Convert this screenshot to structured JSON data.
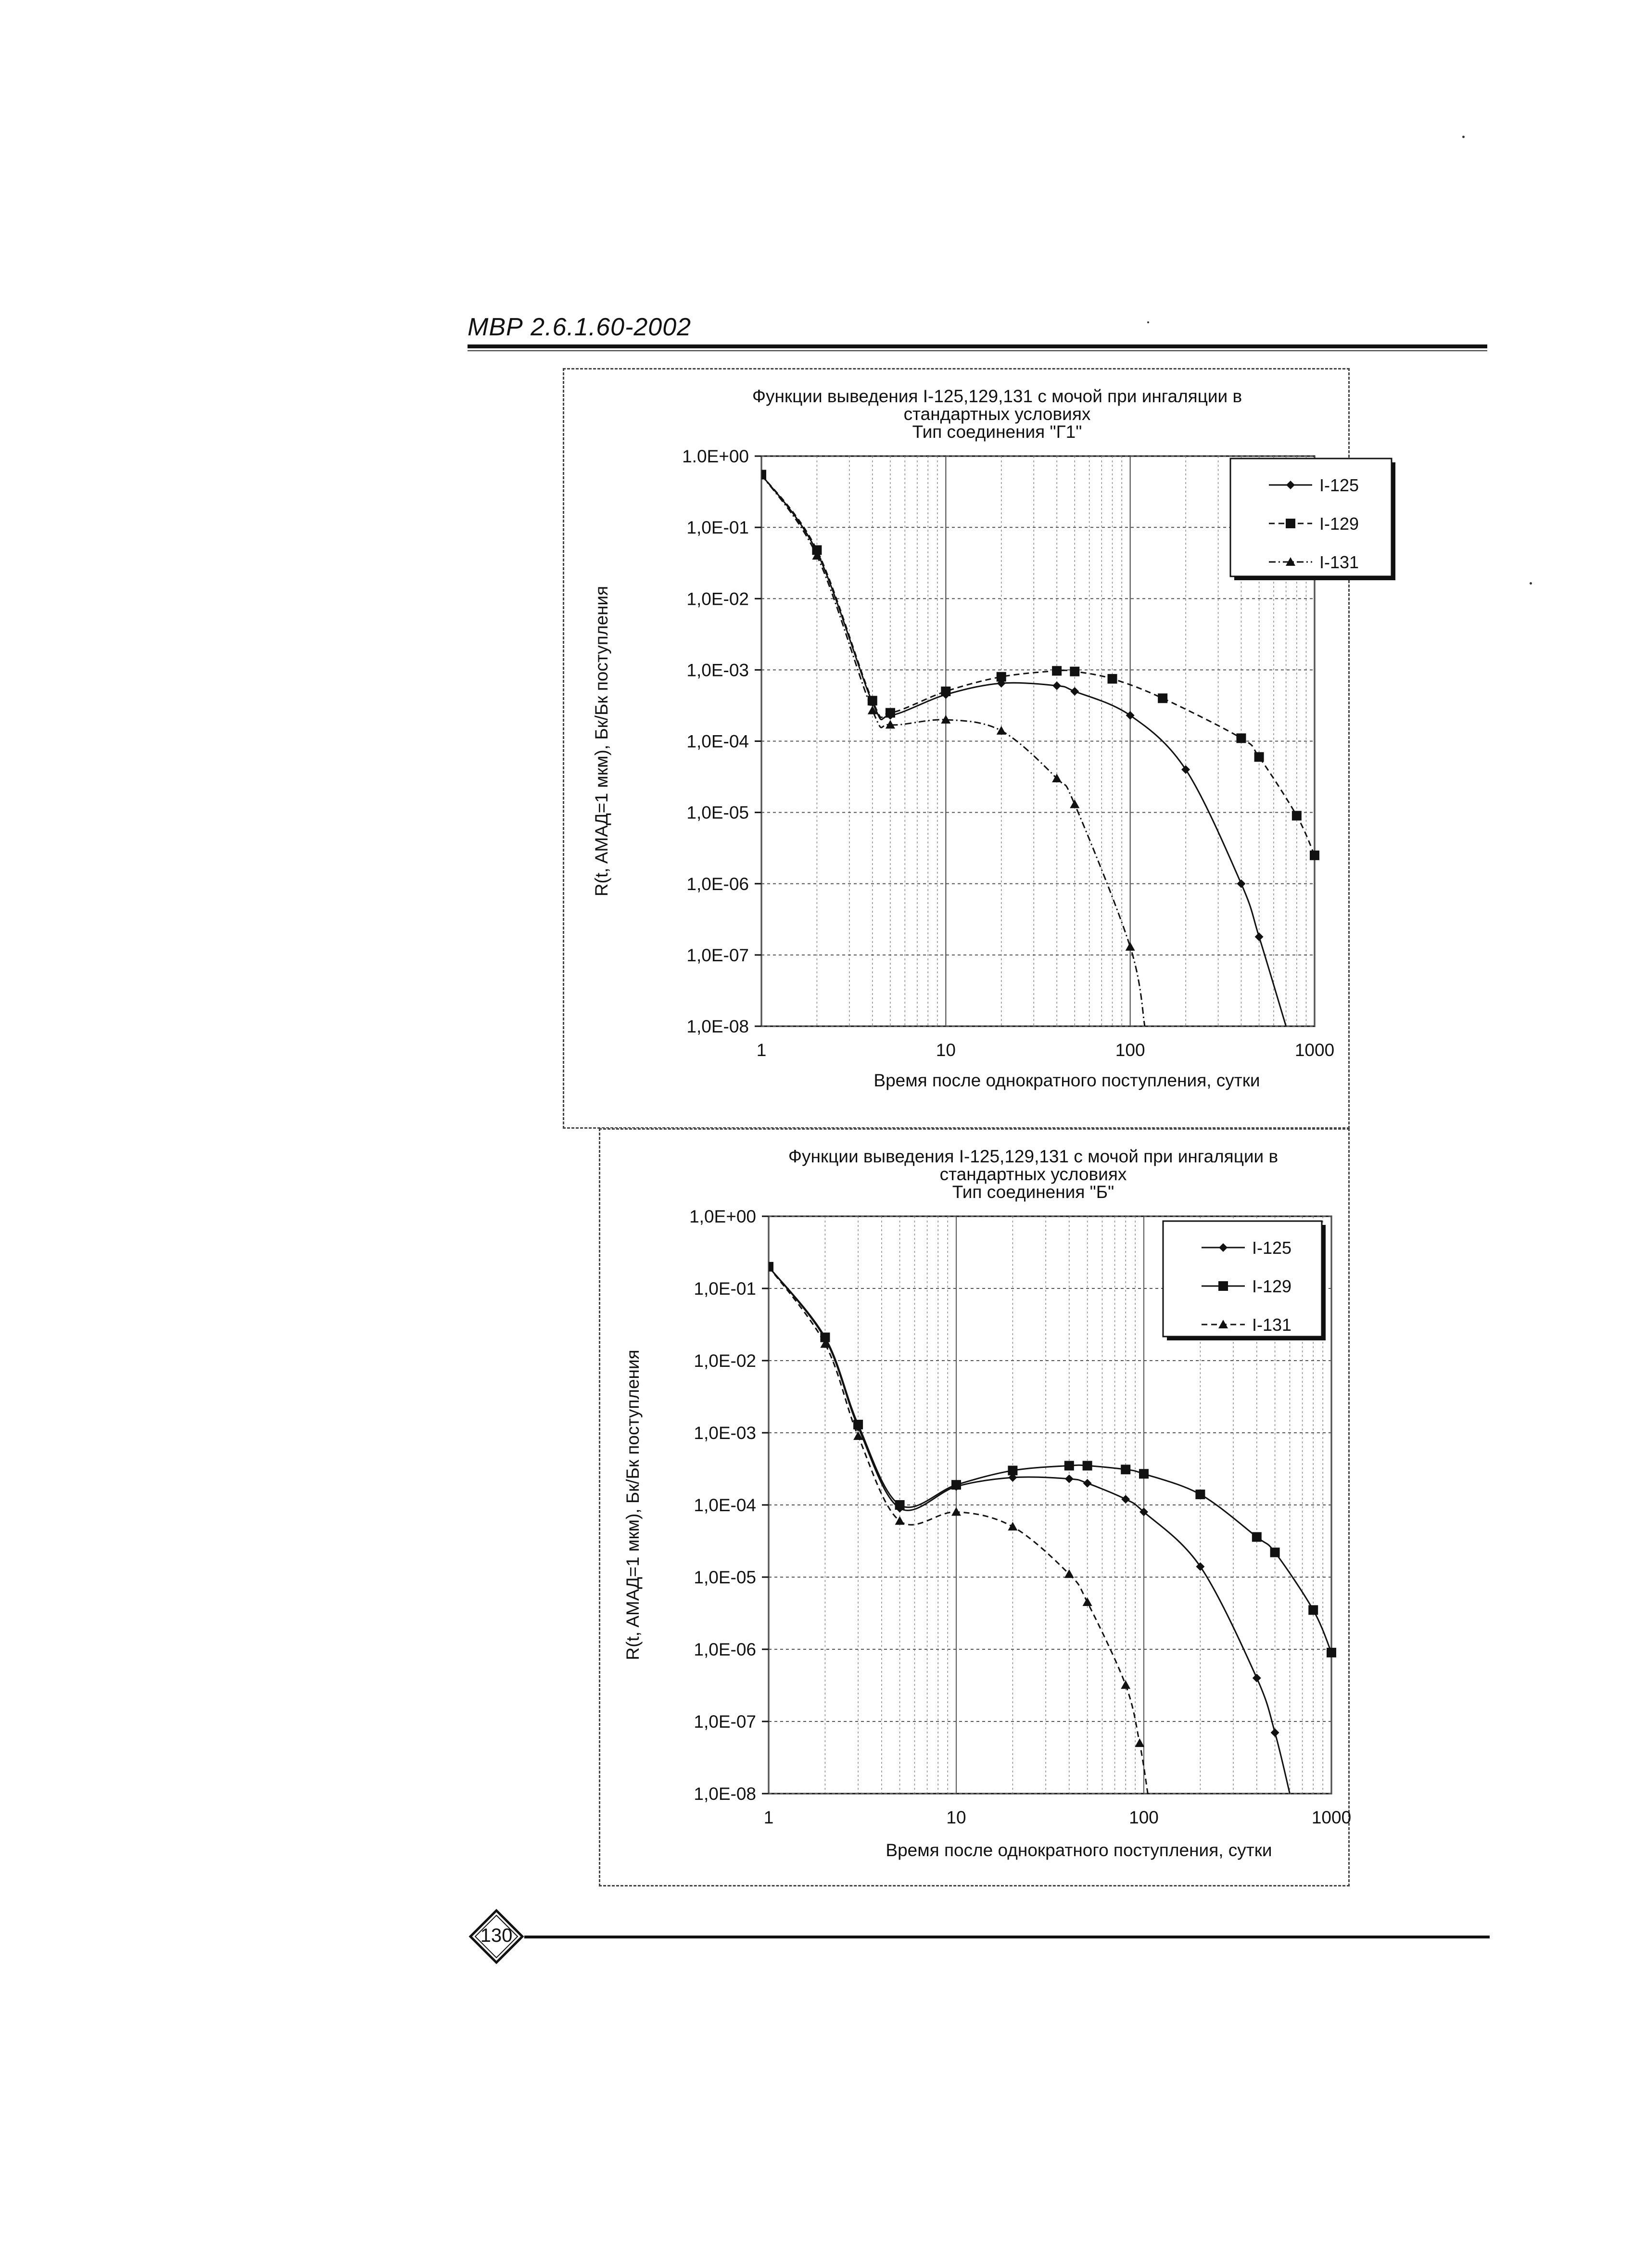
{
  "header": {
    "title": "МВР 2.6.1.60-2002"
  },
  "footer": {
    "page_number": "130"
  },
  "chart_data": [
    {
      "type": "line",
      "title_lines": [
        "Функции выведения I-125,129,131 с мочой при ингаляции в",
        "стандартных условиях",
        "Тип соединения \"Г1\""
      ],
      "xlabel": "Время после однократного поступления, сутки",
      "ylabel": "R(t, AMAД=1 мкм), Бк/Бк поступления",
      "x_scale": "log",
      "y_scale": "log",
      "xlim": [
        1,
        1000
      ],
      "ylim": [
        1e-08,
        1
      ],
      "x_tick_labels": [
        "1",
        "10",
        "100",
        "1000"
      ],
      "y_tick_labels": [
        "1.0E+00",
        "1,0E-01",
        "1,0E-02",
        "1,0E-03",
        "1,0E-04",
        "1,0E-05",
        "1,0E-06",
        "1,0E-07",
        "1,0E-08"
      ],
      "grid": true,
      "legend_position": "top-right",
      "series": [
        {
          "name": "I-125",
          "marker": "diamond",
          "line": "solid",
          "x": [
            1,
            2,
            4,
            5,
            10,
            20,
            40,
            50,
            100,
            200,
            400,
            500,
            700
          ],
          "y": [
            0.55,
            0.045,
            0.00035,
            0.00023,
            0.00045,
            0.00065,
            0.0006,
            0.0005,
            0.00023,
            4e-05,
            1e-06,
            1.8e-07,
            1e-08
          ]
        },
        {
          "name": "I-129",
          "marker": "square",
          "line": "dash",
          "x": [
            1,
            2,
            4,
            5,
            10,
            20,
            40,
            50,
            80,
            150,
            400,
            500,
            800,
            1000
          ],
          "y": [
            0.55,
            0.048,
            0.00037,
            0.00025,
            0.0005,
            0.0008,
            0.00097,
            0.00095,
            0.00075,
            0.0004,
            0.00011,
            6e-05,
            9e-06,
            2.5e-06
          ]
        },
        {
          "name": "I-131",
          "marker": "triangle",
          "line": "dashdot",
          "x": [
            1,
            2,
            4,
            5,
            10,
            20,
            40,
            50,
            100,
            120
          ],
          "y": [
            0.55,
            0.04,
            0.00027,
            0.00017,
            0.0002,
            0.00014,
            3e-05,
            1.3e-05,
            1.3e-07,
            1e-08
          ]
        }
      ]
    },
    {
      "type": "line",
      "title_lines": [
        "Функции выведения I-125,129,131 с мочой при ингаляции в",
        "стандартных условиях",
        "Тип соединения \"Б\""
      ],
      "xlabel": "Время после однократного поступления, сутки",
      "ylabel": "R(t, AMAД=1 мкм), Бк/Бк поступления",
      "x_scale": "log",
      "y_scale": "log",
      "xlim": [
        1,
        1000
      ],
      "ylim": [
        1e-08,
        1
      ],
      "x_tick_labels": [
        "1",
        "10",
        "100",
        "1000"
      ],
      "y_tick_labels": [
        "1,0E+00",
        "1,0E-01",
        "1,0E-02",
        "1,0E-03",
        "1,0E-04",
        "1,0E-05",
        "1,0E-06",
        "1,0E-07",
        "1,0E-08"
      ],
      "grid": true,
      "legend_position": "top-right",
      "series": [
        {
          "name": "I-125",
          "marker": "diamond",
          "line": "solid",
          "x": [
            1,
            2,
            3,
            5,
            10,
            20,
            40,
            50,
            80,
            100,
            200,
            400,
            500,
            600
          ],
          "y": [
            0.2,
            0.02,
            0.0012,
            9e-05,
            0.00018,
            0.00024,
            0.00023,
            0.0002,
            0.00012,
            8e-05,
            1.4e-05,
            4e-07,
            7e-08,
            1e-08
          ]
        },
        {
          "name": "I-129",
          "marker": "square",
          "line": "solid",
          "x": [
            1,
            2,
            3,
            5,
            10,
            20,
            40,
            50,
            80,
            100,
            200,
            400,
            500,
            800,
            1000
          ],
          "y": [
            0.2,
            0.021,
            0.0013,
            0.0001,
            0.00019,
            0.0003,
            0.00035,
            0.00035,
            0.00031,
            0.00027,
            0.00014,
            3.6e-05,
            2.2e-05,
            3.5e-06,
            9e-07
          ]
        },
        {
          "name": "I-131",
          "marker": "triangle",
          "line": "dash",
          "x": [
            1,
            2,
            3,
            5,
            10,
            20,
            40,
            50,
            80,
            95,
            105
          ],
          "y": [
            0.2,
            0.017,
            0.0009,
            6e-05,
            8e-05,
            5e-05,
            1.1e-05,
            4.5e-06,
            3.2e-07,
            5e-08,
            1e-08
          ]
        }
      ]
    }
  ]
}
